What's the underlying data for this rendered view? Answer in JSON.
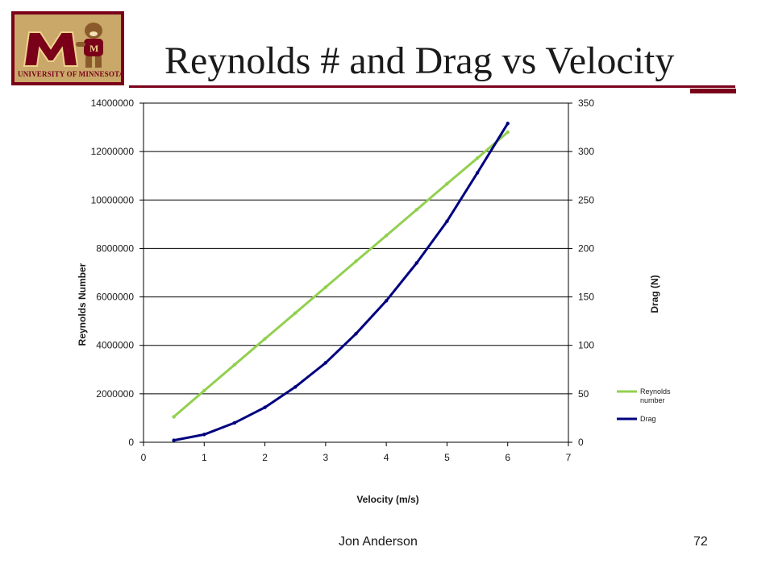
{
  "slide": {
    "title": "Reynolds # and  Drag vs Velocity",
    "logo_text": "UNIVERSITY OF MINNESOTA",
    "author": "Jon Anderson",
    "page_number": "72",
    "colors": {
      "maroon": "#7a0019",
      "gold": "#c9a86a"
    }
  },
  "chart_data": {
    "type": "line",
    "xlabel": "Velocity (m/s)",
    "ylabel_left": "Reynolds Number",
    "ylabel_right": "Drag (N)",
    "xlim": [
      0,
      7
    ],
    "x_ticks": [
      "0",
      "1",
      "2",
      "3",
      "4",
      "5",
      "6",
      "7"
    ],
    "ylim_left": [
      0,
      14000000
    ],
    "y_ticks_left": [
      "0",
      "2000000",
      "4000000",
      "6000000",
      "8000000",
      "10000000",
      "12000000",
      "14000000"
    ],
    "ylim_right": [
      0,
      350
    ],
    "y_ticks_right": [
      "0",
      "50",
      "100",
      "150",
      "200",
      "250",
      "300",
      "350"
    ],
    "grid": true,
    "legend_position": "right",
    "series": [
      {
        "name": "Reynolds number",
        "axis": "left",
        "color": "#92d050",
        "x": [
          0.5,
          1,
          1.5,
          2,
          2.5,
          3,
          3.5,
          4,
          4.5,
          5,
          5.5,
          6
        ],
        "values": [
          1050000,
          2130000,
          3200000,
          4270000,
          5330000,
          6400000,
          7470000,
          8530000,
          9600000,
          10670000,
          11730000,
          12800000
        ]
      },
      {
        "name": "Drag",
        "axis": "right",
        "color": "#000080",
        "x": [
          0.5,
          1,
          1.5,
          2,
          2.5,
          3,
          3.5,
          4,
          4.5,
          5,
          5.5,
          6
        ],
        "values": [
          2,
          8,
          20,
          36,
          57,
          82,
          112,
          146,
          185,
          228,
          278,
          329
        ]
      }
    ]
  }
}
